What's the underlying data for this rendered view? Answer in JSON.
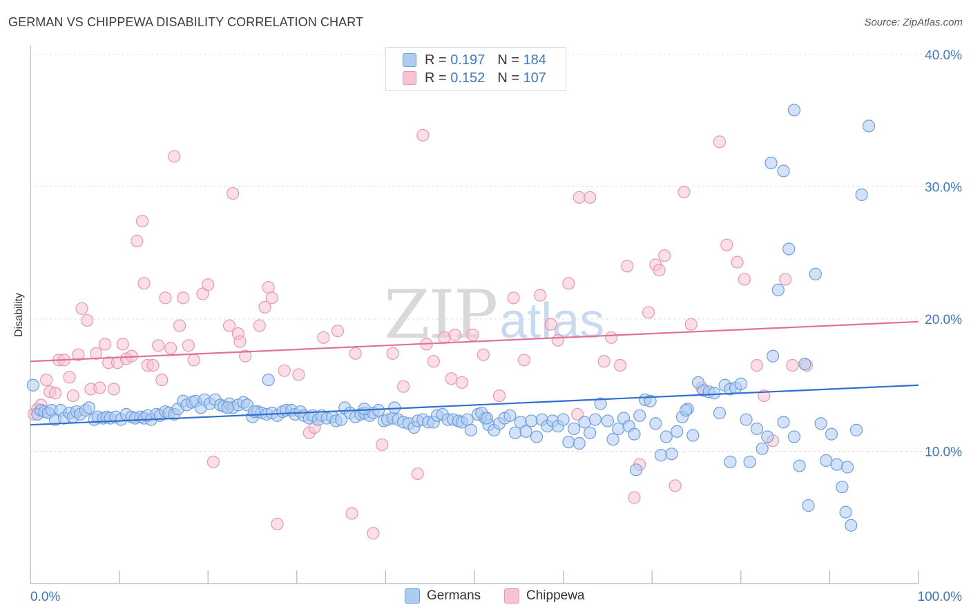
{
  "title": "GERMAN VS CHIPPEWA DISABILITY CORRELATION CHART",
  "source": "Source: ZipAtlas.com",
  "watermark": {
    "zip": "ZIP",
    "atlas": "atlas"
  },
  "legend": [
    {
      "r_label": "R =",
      "r_value": "0.197",
      "n_label": "N =",
      "n_value": "184"
    },
    {
      "r_label": "R =",
      "r_value": "0.152",
      "n_label": "N =",
      "n_value": "107"
    }
  ],
  "colors": {
    "german_fill": "#aecbf2",
    "german_stroke": "#6d9fdc",
    "german_line": "#2f6fcf",
    "chippewa_fill": "#f7c2d2",
    "chippewa_stroke": "#e897b1",
    "chippewa_line": "#e0709a",
    "grid": "#dcdcdc",
    "tick_text": "#3b78c4"
  },
  "chart_data": {
    "type": "scatter",
    "title": "GERMAN VS CHIPPEWA DISABILITY CORRELATION CHART",
    "xlabel": "",
    "ylabel": "Disability",
    "xlim": [
      0,
      100
    ],
    "ylim": [
      0,
      42
    ],
    "x_tick_labels": [
      "0.0%",
      "100.0%"
    ],
    "y_ticks": [
      10,
      20,
      30,
      40
    ],
    "y_tick_labels": [
      "10.0%",
      "20.0%",
      "30.0%",
      "40.0%"
    ],
    "grid": true,
    "legend_position": "top-center",
    "series": [
      {
        "name": "Germans",
        "trend": {
          "x": [
            0,
            100
          ],
          "y": [
            12.0,
            15.0
          ]
        },
        "points": [
          [
            0.3,
            15.0
          ],
          [
            0.8,
            12.8
          ],
          [
            1.2,
            13.1
          ],
          [
            1.6,
            13.0
          ],
          [
            2.0,
            12.9
          ],
          [
            2.4,
            13.1
          ],
          [
            2.8,
            12.4
          ],
          [
            3.4,
            13.1
          ],
          [
            3.8,
            12.5
          ],
          [
            4.4,
            12.9
          ],
          [
            4.8,
            12.6
          ],
          [
            5.2,
            13.0
          ],
          [
            5.6,
            12.8
          ],
          [
            6.2,
            13.1
          ],
          [
            6.6,
            13.3
          ],
          [
            7.2,
            12.4
          ],
          [
            7.6,
            12.6
          ],
          [
            8.2,
            12.5
          ],
          [
            8.6,
            12.6
          ],
          [
            9.0,
            12.5
          ],
          [
            9.6,
            12.6
          ],
          [
            10.2,
            12.4
          ],
          [
            10.8,
            12.8
          ],
          [
            11.4,
            12.6
          ],
          [
            11.8,
            12.5
          ],
          [
            12.4,
            12.6
          ],
          [
            12.8,
            12.5
          ],
          [
            13.2,
            12.7
          ],
          [
            13.6,
            12.4
          ],
          [
            14.2,
            12.8
          ],
          [
            14.6,
            12.7
          ],
          [
            15.2,
            13.0
          ],
          [
            15.6,
            12.9
          ],
          [
            16.2,
            12.8
          ],
          [
            16.6,
            13.2
          ],
          [
            17.2,
            13.8
          ],
          [
            17.6,
            13.5
          ],
          [
            18.2,
            13.7
          ],
          [
            18.6,
            13.8
          ],
          [
            19.2,
            13.3
          ],
          [
            19.6,
            13.9
          ],
          [
            20.2,
            13.6
          ],
          [
            20.8,
            13.9
          ],
          [
            21.4,
            13.5
          ],
          [
            21.8,
            13.4
          ],
          [
            22.4,
            13.6
          ],
          [
            22.8,
            13.3
          ],
          [
            23.4,
            13.5
          ],
          [
            24.0,
            13.7
          ],
          [
            24.4,
            13.5
          ],
          [
            25.0,
            12.6
          ],
          [
            25.6,
            13.0
          ],
          [
            26.0,
            12.9
          ],
          [
            26.6,
            12.8
          ],
          [
            27.2,
            12.9
          ],
          [
            27.8,
            12.7
          ],
          [
            28.4,
            13.0
          ],
          [
            28.8,
            13.1
          ],
          [
            29.4,
            13.1
          ],
          [
            29.8,
            12.8
          ],
          [
            30.4,
            13.0
          ],
          [
            30.8,
            12.7
          ],
          [
            31.4,
            12.5
          ],
          [
            31.8,
            12.7
          ],
          [
            32.4,
            12.4
          ],
          [
            32.8,
            12.7
          ],
          [
            33.4,
            12.5
          ],
          [
            34.0,
            12.6
          ],
          [
            34.4,
            12.3
          ],
          [
            35.0,
            12.4
          ],
          [
            35.4,
            13.3
          ],
          [
            36.0,
            12.9
          ],
          [
            36.6,
            12.6
          ],
          [
            37.2,
            12.8
          ],
          [
            37.6,
            12.9
          ],
          [
            38.2,
            12.7
          ],
          [
            38.6,
            12.9
          ],
          [
            39.2,
            13.1
          ],
          [
            39.8,
            12.3
          ],
          [
            40.2,
            12.4
          ],
          [
            40.8,
            12.5
          ],
          [
            41.4,
            12.4
          ],
          [
            42.0,
            12.2
          ],
          [
            42.6,
            12.1
          ],
          [
            43.2,
            11.8
          ],
          [
            43.6,
            12.3
          ],
          [
            44.2,
            12.4
          ],
          [
            44.8,
            12.2
          ],
          [
            45.4,
            12.2
          ],
          [
            45.8,
            12.7
          ],
          [
            46.4,
            12.8
          ],
          [
            47.0,
            12.4
          ],
          [
            47.6,
            12.4
          ],
          [
            48.2,
            12.3
          ],
          [
            48.6,
            12.2
          ],
          [
            49.2,
            12.4
          ],
          [
            49.6,
            11.6
          ],
          [
            50.4,
            12.8
          ],
          [
            51.2,
            12.5
          ],
          [
            51.6,
            12.0
          ],
          [
            52.2,
            11.6
          ],
          [
            52.8,
            12.1
          ],
          [
            53.4,
            12.5
          ],
          [
            54.0,
            12.7
          ],
          [
            54.6,
            11.4
          ],
          [
            55.2,
            12.2
          ],
          [
            55.8,
            11.5
          ],
          [
            56.4,
            12.3
          ],
          [
            57.0,
            11.1
          ],
          [
            57.6,
            12.4
          ],
          [
            58.2,
            11.9
          ],
          [
            58.8,
            12.3
          ],
          [
            59.4,
            11.9
          ],
          [
            60.0,
            12.4
          ],
          [
            60.6,
            10.7
          ],
          [
            61.2,
            11.7
          ],
          [
            61.8,
            10.6
          ],
          [
            62.4,
            12.2
          ],
          [
            63.0,
            11.4
          ],
          [
            63.6,
            12.4
          ],
          [
            64.2,
            13.6
          ],
          [
            65.0,
            12.3
          ],
          [
            65.6,
            10.9
          ],
          [
            66.2,
            11.7
          ],
          [
            66.8,
            12.5
          ],
          [
            67.4,
            11.9
          ],
          [
            68.0,
            11.3
          ],
          [
            68.6,
            12.7
          ],
          [
            69.2,
            13.9
          ],
          [
            69.8,
            13.8
          ],
          [
            70.4,
            12.1
          ],
          [
            71.0,
            9.7
          ],
          [
            71.6,
            11.1
          ],
          [
            72.2,
            9.8
          ],
          [
            72.8,
            11.5
          ],
          [
            73.4,
            12.6
          ],
          [
            74.0,
            13.2
          ],
          [
            74.6,
            11.2
          ],
          [
            75.2,
            15.2
          ],
          [
            75.8,
            14.6
          ],
          [
            76.4,
            14.5
          ],
          [
            77.0,
            14.4
          ],
          [
            77.6,
            12.9
          ],
          [
            78.2,
            15.0
          ],
          [
            78.8,
            14.7
          ],
          [
            79.4,
            14.8
          ],
          [
            80.0,
            15.1
          ],
          [
            80.6,
            12.4
          ],
          [
            81.0,
            9.2
          ],
          [
            81.8,
            11.7
          ],
          [
            82.4,
            10.2
          ],
          [
            83.0,
            11.1
          ],
          [
            83.6,
            17.2
          ],
          [
            84.2,
            22.2
          ],
          [
            84.8,
            12.2
          ],
          [
            85.4,
            25.3
          ],
          [
            86.0,
            11.1
          ],
          [
            86.6,
            8.9
          ],
          [
            87.2,
            16.6
          ],
          [
            87.6,
            5.9
          ],
          [
            88.4,
            23.4
          ],
          [
            89.0,
            12.1
          ],
          [
            89.6,
            9.3
          ],
          [
            90.2,
            11.3
          ],
          [
            90.8,
            9.0
          ],
          [
            91.4,
            7.3
          ],
          [
            91.8,
            5.4
          ],
          [
            92.4,
            4.4
          ],
          [
            93.0,
            11.6
          ],
          [
            93.6,
            29.4
          ],
          [
            94.4,
            34.6
          ],
          [
            86.0,
            35.8
          ],
          [
            83.4,
            31.8
          ],
          [
            84.8,
            31.2
          ],
          [
            92.0,
            8.8
          ],
          [
            78.8,
            9.2
          ],
          [
            73.8,
            13.1
          ],
          [
            68.2,
            8.6
          ],
          [
            50.8,
            12.9
          ],
          [
            41.0,
            13.3
          ],
          [
            37.6,
            13.2
          ],
          [
            25.2,
            13.0
          ],
          [
            22.2,
            13.3
          ],
          [
            26.8,
            15.4
          ],
          [
            51.4,
            12.5
          ]
        ]
      },
      {
        "name": "Chippewa",
        "trend": {
          "x": [
            0,
            100
          ],
          "y": [
            16.8,
            19.8
          ]
        },
        "points": [
          [
            0.4,
            12.8
          ],
          [
            0.8,
            13.2
          ],
          [
            1.2,
            13.5
          ],
          [
            1.8,
            15.4
          ],
          [
            2.2,
            14.5
          ],
          [
            2.8,
            14.4
          ],
          [
            3.2,
            16.9
          ],
          [
            3.8,
            16.9
          ],
          [
            4.4,
            15.6
          ],
          [
            4.8,
            14.2
          ],
          [
            5.4,
            17.3
          ],
          [
            5.8,
            20.8
          ],
          [
            6.4,
            19.9
          ],
          [
            6.8,
            14.7
          ],
          [
            7.4,
            17.4
          ],
          [
            7.8,
            14.8
          ],
          [
            8.4,
            18.1
          ],
          [
            8.8,
            16.7
          ],
          [
            9.4,
            14.7
          ],
          [
            9.8,
            16.7
          ],
          [
            10.4,
            18.1
          ],
          [
            10.8,
            17.0
          ],
          [
            11.4,
            17.2
          ],
          [
            12.0,
            25.9
          ],
          [
            12.6,
            27.4
          ],
          [
            12.8,
            22.7
          ],
          [
            13.2,
            16.5
          ],
          [
            13.8,
            16.5
          ],
          [
            14.4,
            18.0
          ],
          [
            14.8,
            15.4
          ],
          [
            15.2,
            21.6
          ],
          [
            15.8,
            17.8
          ],
          [
            16.2,
            32.3
          ],
          [
            16.8,
            19.5
          ],
          [
            17.2,
            21.6
          ],
          [
            17.8,
            18.0
          ],
          [
            18.4,
            16.9
          ],
          [
            19.4,
            21.9
          ],
          [
            20.0,
            22.6
          ],
          [
            20.6,
            9.2
          ],
          [
            22.4,
            19.5
          ],
          [
            22.8,
            29.5
          ],
          [
            23.4,
            18.9
          ],
          [
            23.6,
            18.3
          ],
          [
            24.2,
            17.2
          ],
          [
            25.8,
            19.5
          ],
          [
            26.4,
            20.9
          ],
          [
            26.8,
            22.4
          ],
          [
            27.2,
            21.6
          ],
          [
            27.8,
            4.5
          ],
          [
            28.6,
            16.1
          ],
          [
            30.2,
            15.8
          ],
          [
            31.4,
            11.4
          ],
          [
            32.0,
            11.8
          ],
          [
            33.0,
            18.6
          ],
          [
            34.6,
            19.1
          ],
          [
            36.2,
            5.3
          ],
          [
            36.6,
            17.4
          ],
          [
            38.6,
            3.8
          ],
          [
            39.6,
            10.5
          ],
          [
            40.8,
            17.4
          ],
          [
            42.0,
            14.9
          ],
          [
            43.6,
            8.3
          ],
          [
            44.2,
            33.9
          ],
          [
            44.6,
            18.1
          ],
          [
            45.4,
            16.8
          ],
          [
            46.6,
            18.6
          ],
          [
            47.4,
            15.5
          ],
          [
            47.8,
            18.8
          ],
          [
            48.6,
            15.2
          ],
          [
            49.8,
            18.8
          ],
          [
            51.0,
            17.3
          ],
          [
            52.8,
            14.2
          ],
          [
            54.4,
            21.6
          ],
          [
            55.6,
            16.9
          ],
          [
            57.4,
            21.8
          ],
          [
            58.6,
            19.6
          ],
          [
            59.4,
            18.4
          ],
          [
            60.6,
            22.7
          ],
          [
            61.8,
            29.2
          ],
          [
            63.0,
            29.2
          ],
          [
            64.6,
            16.8
          ],
          [
            65.4,
            18.6
          ],
          [
            66.4,
            16.5
          ],
          [
            67.2,
            24.0
          ],
          [
            68.0,
            6.5
          ],
          [
            68.6,
            9.0
          ],
          [
            69.6,
            20.5
          ],
          [
            70.4,
            24.1
          ],
          [
            70.8,
            23.7
          ],
          [
            71.4,
            24.8
          ],
          [
            72.6,
            7.4
          ],
          [
            73.6,
            29.6
          ],
          [
            74.4,
            19.6
          ],
          [
            75.6,
            14.8
          ],
          [
            77.6,
            33.4
          ],
          [
            78.4,
            25.6
          ],
          [
            79.6,
            24.3
          ],
          [
            80.4,
            23.0
          ],
          [
            81.8,
            16.5
          ],
          [
            82.6,
            14.2
          ],
          [
            83.6,
            10.8
          ],
          [
            85.0,
            23.0
          ],
          [
            85.8,
            16.5
          ],
          [
            87.4,
            16.5
          ],
          [
            61.6,
            12.8
          ]
        ]
      }
    ]
  },
  "bottom_legend": [
    "Germans",
    "Chippewa"
  ]
}
